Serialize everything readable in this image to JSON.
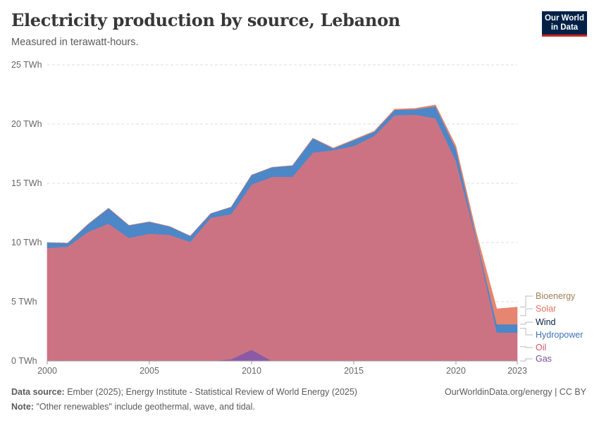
{
  "header": {
    "title": "Electricity production by source, Lebanon",
    "subtitle": "Measured in terawatt-hours."
  },
  "logo": {
    "line1": "Our World",
    "line2": "in Data"
  },
  "footer": {
    "source_label": "Data source:",
    "source_text": "Ember (2025); Energy Institute - Statistical Review of World Energy (2025)",
    "note_label": "Note:",
    "note_text": "\"Other renewables\" include geothermal, wave, and tidal.",
    "credit": "OurWorldinData.org/energy | CC BY"
  },
  "chart_data": {
    "type": "area",
    "stacked": true,
    "title": "Electricity production by source, Lebanon",
    "ylabel": "TWh",
    "ylim": [
      0,
      25
    ],
    "yticks": [
      0,
      5,
      10,
      15,
      20,
      25
    ],
    "ytick_labels": [
      "0 TWh",
      "5 TWh",
      "10 TWh",
      "15 TWh",
      "20 TWh",
      "25 TWh"
    ],
    "xticks": [
      2000,
      2005,
      2010,
      2015,
      2020,
      2023
    ],
    "x": [
      2000,
      2001,
      2002,
      2003,
      2004,
      2005,
      2006,
      2007,
      2008,
      2009,
      2010,
      2011,
      2012,
      2013,
      2014,
      2015,
      2016,
      2017,
      2018,
      2019,
      2020,
      2021,
      2022,
      2023
    ],
    "series": [
      {
        "name": "Gas",
        "color": "#8b5aa6",
        "values": [
          0,
          0,
          0,
          0,
          0,
          0,
          0,
          0,
          0,
          0.15,
          0.95,
          0,
          0,
          0,
          0,
          0,
          0,
          0,
          0,
          0,
          0,
          0,
          0,
          0
        ]
      },
      {
        "name": "Oil",
        "color": "#cc7383",
        "values": [
          9.55,
          9.65,
          10.9,
          11.6,
          10.4,
          10.75,
          10.65,
          10.05,
          12.1,
          12.25,
          13.95,
          15.55,
          15.55,
          17.6,
          17.8,
          18.15,
          19.0,
          20.75,
          20.8,
          20.5,
          16.9,
          10.2,
          2.4,
          2.4
        ]
      },
      {
        "name": "Hydropower",
        "color": "#4c87c8",
        "values": [
          0.45,
          0.3,
          0.65,
          1.3,
          1.05,
          1.0,
          0.7,
          0.5,
          0.35,
          0.6,
          0.8,
          0.8,
          0.95,
          1.2,
          0.15,
          0.5,
          0.35,
          0.45,
          0.45,
          1.0,
          1.0,
          0.2,
          0.7,
          0.7
        ]
      },
      {
        "name": "Wind",
        "color": "#0b3a66",
        "values": [
          0,
          0,
          0,
          0,
          0,
          0,
          0,
          0,
          0,
          0,
          0,
          0,
          0,
          0,
          0,
          0,
          0,
          0,
          0,
          0,
          0,
          0,
          0,
          0
        ]
      },
      {
        "name": "Solar",
        "color": "#e68570",
        "values": [
          0,
          0,
          0,
          0,
          0,
          0,
          0,
          0,
          0,
          0,
          0,
          0,
          0,
          0.02,
          0.03,
          0.04,
          0.05,
          0.06,
          0.08,
          0.12,
          0.25,
          0.4,
          1.3,
          1.45
        ]
      },
      {
        "name": "Bioenergy",
        "color": "#9f7c4e",
        "values": [
          0,
          0,
          0,
          0,
          0,
          0,
          0,
          0,
          0,
          0,
          0,
          0,
          0,
          0,
          0,
          0,
          0,
          0,
          0,
          0,
          0,
          0,
          0,
          0
        ]
      }
    ],
    "legend": [
      {
        "name": "Bioenergy",
        "color": "#a0805a"
      },
      {
        "name": "Solar",
        "color": "#e1735c"
      },
      {
        "name": "Wind",
        "color": "#002147"
      },
      {
        "name": "Hydropower",
        "color": "#3f73b5"
      },
      {
        "name": "Oil",
        "color": "#c9586d"
      },
      {
        "name": "Gas",
        "color": "#7a4e9a"
      }
    ]
  }
}
